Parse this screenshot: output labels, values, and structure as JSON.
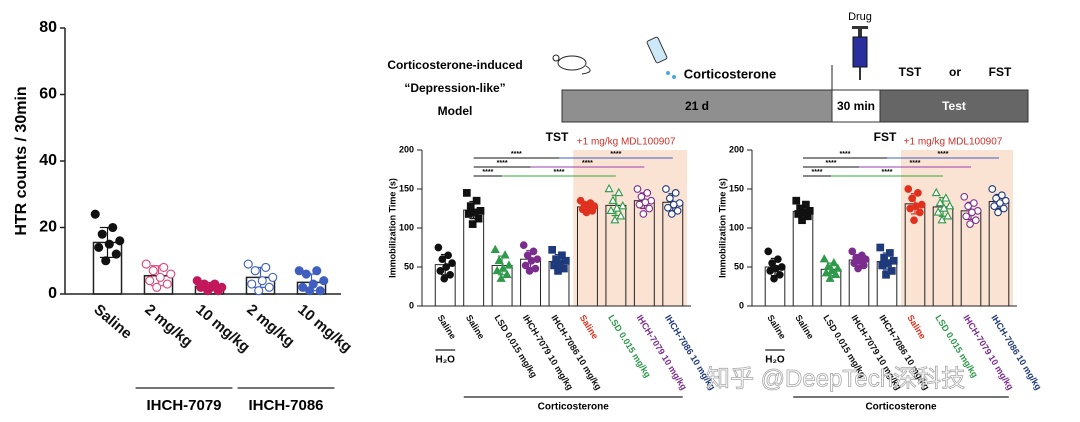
{
  "header": {
    "model": [
      "Corticosterone-induced",
      "“Depression-like”",
      "Model"
    ],
    "drug_in": "Corticosterone",
    "drug": "Drug",
    "phases": [
      "21 d",
      "30 min",
      "Test"
    ],
    "tests": [
      "TST",
      "or",
      "FST"
    ]
  },
  "watermark": "知乎 @DeepTech深科技",
  "chart_data": [
    {
      "type": "bar",
      "y_label": "HTR counts / 30min",
      "categories": [
        "Saline",
        "2 mg/kg",
        "10 mg/kg",
        "2 mg/kg",
        "10 mg/kg"
      ],
      "values": [
        15.5,
        5.5,
        2.3,
        5,
        3.5
      ],
      "errors": [
        4.5,
        3,
        1.2,
        3,
        2.5
      ],
      "points": [
        [
          24,
          20,
          18,
          16,
          15,
          14,
          12,
          10
        ],
        [
          9,
          8,
          7,
          6,
          5,
          4,
          3,
          2
        ],
        [
          4,
          3,
          3,
          2,
          2,
          2,
          1,
          1
        ],
        [
          9,
          8,
          7,
          5,
          4,
          3,
          2,
          1
        ],
        [
          7,
          7,
          6,
          4,
          3,
          2,
          1,
          1
        ]
      ],
      "colors": [
        "#111111",
        "#e0447a",
        "#c2185b",
        "#3f5fbf",
        "#3f5fbf"
      ],
      "filled": [
        true,
        false,
        true,
        false,
        true
      ],
      "markers": [
        "circle",
        "circle",
        "circle",
        "circle",
        "circle"
      ],
      "groups": [
        {
          "label": "IHCH-7079",
          "from": 1,
          "to": 2
        },
        {
          "label": "IHCH-7086",
          "from": 3,
          "to": 4
        }
      ],
      "ylim": [
        0,
        80
      ],
      "yticks": [
        0,
        20,
        40,
        60,
        80
      ]
    },
    {
      "type": "bar",
      "title": "TST",
      "annotation": "+1 mg/kg MDL100907",
      "y_label": "Immobilization Time (s)",
      "categories": [
        "Saline",
        "Saline",
        "LSD 0.015 mg/kg",
        "IHCH-7079 10 mg/kg",
        "IHCH-7086 10 mg/kg",
        "Saline",
        "LSD 0.015 mg/kg",
        "IHCH-7079 10 mg/kg",
        "IHCH-7086 10 mg/kg"
      ],
      "values": [
        53,
        123,
        52,
        60,
        57,
        127,
        129,
        135,
        133
      ],
      "errors": [
        13,
        11,
        12,
        11,
        9,
        5,
        13,
        10,
        11
      ],
      "points": [
        [
          75,
          65,
          60,
          55,
          50,
          45,
          40,
          35
        ],
        [
          145,
          135,
          128,
          122,
          120,
          118,
          112,
          105
        ],
        [
          72,
          65,
          58,
          52,
          48,
          45,
          40,
          35
        ],
        [
          78,
          70,
          65,
          60,
          58,
          52,
          48,
          45
        ],
        [
          72,
          65,
          60,
          58,
          55,
          52,
          48,
          45
        ],
        [
          135,
          132,
          130,
          128,
          126,
          124,
          122,
          120
        ],
        [
          150,
          145,
          135,
          128,
          125,
          122,
          115,
          110
        ],
        [
          150,
          145,
          140,
          135,
          133,
          130,
          125,
          118
        ],
        [
          150,
          145,
          138,
          132,
          130,
          126,
          122,
          118
        ]
      ],
      "colors": [
        "#111111",
        "#111111",
        "#2e9a4a",
        "#7b2d8e",
        "#1f3a7a",
        "#e0301e",
        "#2e9a4a",
        "#7b2d8e",
        "#1f3a7a"
      ],
      "filled": [
        true,
        true,
        true,
        true,
        true,
        true,
        false,
        false,
        false
      ],
      "markers": [
        "circle",
        "square",
        "triangle",
        "circle",
        "square",
        "circle",
        "triangle",
        "circle",
        "circle"
      ],
      "groups": [
        {
          "label": "H₂O",
          "from": 0,
          "to": 0
        },
        {
          "label": "Corticosterone",
          "from": 1,
          "to": 8
        }
      ],
      "shade": {
        "from": 5,
        "to": 8,
        "color": "#fbe3d4"
      },
      "comparisons": [
        {
          "pair": [
            1,
            4
          ],
          "label": "****",
          "color": "#111111"
        },
        {
          "pair": [
            4,
            8
          ],
          "label": "****",
          "color": "#3f5fbf"
        },
        {
          "pair": [
            1,
            3
          ],
          "label": "****",
          "color": "#111111"
        },
        {
          "pair": [
            3,
            7
          ],
          "label": "****",
          "color": "#9b3fb0"
        },
        {
          "pair": [
            1,
            2
          ],
          "label": "****",
          "color": "#111111"
        },
        {
          "pair": [
            2,
            6
          ],
          "label": "****",
          "color": "#3aa63a"
        }
      ],
      "ylim": [
        0,
        200
      ],
      "yticks": [
        0,
        50,
        100,
        150,
        200
      ]
    },
    {
      "type": "bar",
      "title": "FST",
      "annotation": "+1 mg/kg MDL100907",
      "y_label": "Immobilization Time (s)",
      "categories": [
        "Saline",
        "Saline",
        "LSD 0.015 mg/kg",
        "IHCH-7079 10 mg/kg",
        "IHCH-7086 10 mg/kg",
        "Saline",
        "LSD 0.015 mg/kg",
        "IHCH-7079 10 mg/kg",
        "IHCH-7086 10 mg/kg"
      ],
      "values": [
        50,
        121,
        47,
        59,
        57,
        131,
        127,
        122,
        134
      ],
      "errors": [
        11,
        8,
        8,
        7,
        11,
        13,
        12,
        11,
        9
      ],
      "points": [
        [
          70,
          60,
          55,
          50,
          48,
          45,
          40,
          35
        ],
        [
          135,
          130,
          125,
          122,
          120,
          118,
          115,
          110
        ],
        [
          60,
          55,
          50,
          48,
          45,
          42,
          40,
          35
        ],
        [
          70,
          65,
          62,
          60,
          58,
          55,
          52,
          48
        ],
        [
          75,
          68,
          62,
          58,
          55,
          52,
          45,
          40
        ],
        [
          150,
          145,
          138,
          130,
          128,
          125,
          120,
          110
        ],
        [
          145,
          138,
          132,
          128,
          125,
          120,
          115,
          110
        ],
        [
          140,
          132,
          128,
          122,
          120,
          115,
          110,
          105
        ],
        [
          150,
          142,
          138,
          135,
          132,
          128,
          125,
          120
        ]
      ],
      "colors": [
        "#111111",
        "#111111",
        "#2e9a4a",
        "#7b2d8e",
        "#1f3a7a",
        "#e0301e",
        "#2e9a4a",
        "#7b2d8e",
        "#1f3a7a"
      ],
      "filled": [
        true,
        true,
        true,
        true,
        true,
        true,
        false,
        false,
        false
      ],
      "markers": [
        "circle",
        "square",
        "triangle",
        "circle",
        "square",
        "circle",
        "triangle",
        "circle",
        "circle"
      ],
      "groups": [
        {
          "label": "H₂O",
          "from": 0,
          "to": 0
        },
        {
          "label": "Corticosterone",
          "from": 1,
          "to": 8
        }
      ],
      "shade": {
        "from": 5,
        "to": 8,
        "color": "#fbe3d4"
      },
      "comparisons": [
        {
          "pair": [
            1,
            4
          ],
          "label": "****",
          "color": "#111111"
        },
        {
          "pair": [
            4,
            8
          ],
          "label": "****",
          "color": "#3f5fbf"
        },
        {
          "pair": [
            1,
            3
          ],
          "label": "****",
          "color": "#111111"
        },
        {
          "pair": [
            3,
            7
          ],
          "label": "****",
          "color": "#9b3fb0"
        },
        {
          "pair": [
            1,
            2
          ],
          "label": "****",
          "color": "#111111"
        },
        {
          "pair": [
            2,
            6
          ],
          "label": "****",
          "color": "#3aa63a"
        }
      ],
      "ylim": [
        0,
        200
      ],
      "yticks": [
        0,
        50,
        100,
        150,
        200
      ]
    }
  ]
}
